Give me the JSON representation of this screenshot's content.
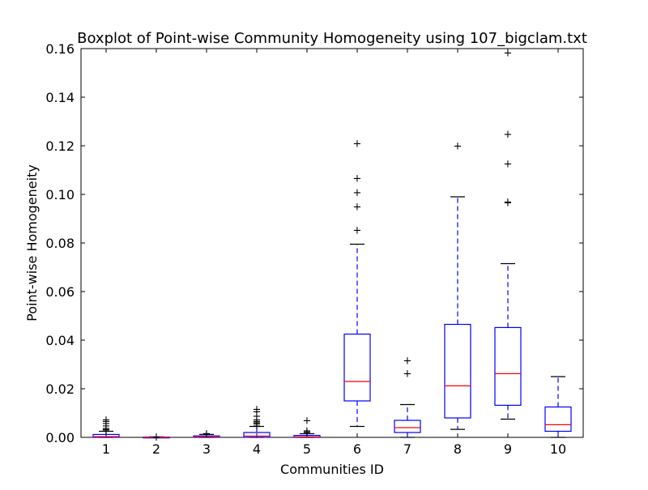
{
  "chart_data": {
    "type": "boxplot",
    "title": "Boxplot of Point-wise Community Homogeneity using 107_bigclam.txt",
    "xlabel": "Communities ID",
    "ylabel": "Point-wise Homogeneity",
    "ylim": [
      0,
      0.16
    ],
    "yticks": [
      "0.00",
      "0.02",
      "0.04",
      "0.06",
      "0.08",
      "0.10",
      "0.12",
      "0.14",
      "0.16"
    ],
    "grid": false,
    "colors": {
      "box": "#0000ff",
      "median": "#ff0000",
      "whisker": "#0000ff",
      "cap": "#000000",
      "flier": "#000000"
    },
    "categories": [
      "1",
      "2",
      "3",
      "4",
      "5",
      "6",
      "7",
      "8",
      "9",
      "10"
    ],
    "boxes": [
      {
        "id": "1",
        "q1": 0.0,
        "median": 0.0003,
        "q3": 0.0012,
        "whislo": 0.0,
        "whishi": 0.0025,
        "fliers": [
          0.003,
          0.0035,
          0.004,
          0.005,
          0.006,
          0.0068,
          0.0075
        ]
      },
      {
        "id": "2",
        "q1": 0.0,
        "median": 0.0,
        "q3": 0.0001,
        "whislo": 0.0,
        "whishi": 0.0002,
        "fliers": [
          0.0003
        ]
      },
      {
        "id": "3",
        "q1": 0.0,
        "median": 0.0002,
        "q3": 0.0006,
        "whislo": 0.0,
        "whishi": 0.0012,
        "fliers": [
          0.0015,
          0.0018
        ]
      },
      {
        "id": "4",
        "q1": 0.0,
        "median": 0.0005,
        "q3": 0.002,
        "whislo": 0.0,
        "whishi": 0.0045,
        "fliers": [
          0.005,
          0.0058,
          0.0063,
          0.0068,
          0.0075,
          0.009,
          0.0108,
          0.0118
        ]
      },
      {
        "id": "5",
        "q1": 0.0,
        "median": 0.0002,
        "q3": 0.0008,
        "whislo": 0.0,
        "whishi": 0.0015,
        "fliers": [
          0.002,
          0.0025,
          0.003,
          0.0072
        ]
      },
      {
        "id": "6",
        "q1": 0.015,
        "median": 0.023,
        "q3": 0.0425,
        "whislo": 0.0045,
        "whishi": 0.0795,
        "fliers": [
          0.0855,
          0.0952,
          0.101,
          0.1068,
          0.1212
        ]
      },
      {
        "id": "7",
        "q1": 0.002,
        "median": 0.004,
        "q3": 0.007,
        "whislo": 0.0,
        "whishi": 0.0135,
        "fliers": [
          0.0265,
          0.0318
        ]
      },
      {
        "id": "8",
        "q1": 0.008,
        "median": 0.0212,
        "q3": 0.0465,
        "whislo": 0.0033,
        "whishi": 0.099,
        "fliers": [
          0.1202
        ]
      },
      {
        "id": "9",
        "q1": 0.0132,
        "median": 0.0262,
        "q3": 0.0452,
        "whislo": 0.0075,
        "whishi": 0.0715,
        "fliers": [
          0.0968,
          0.0972,
          0.1128,
          0.125,
          0.1585
        ]
      },
      {
        "id": "10",
        "q1": 0.0025,
        "median": 0.0052,
        "q3": 0.0125,
        "whislo": 0.0,
        "whishi": 0.025,
        "fliers": []
      }
    ]
  }
}
